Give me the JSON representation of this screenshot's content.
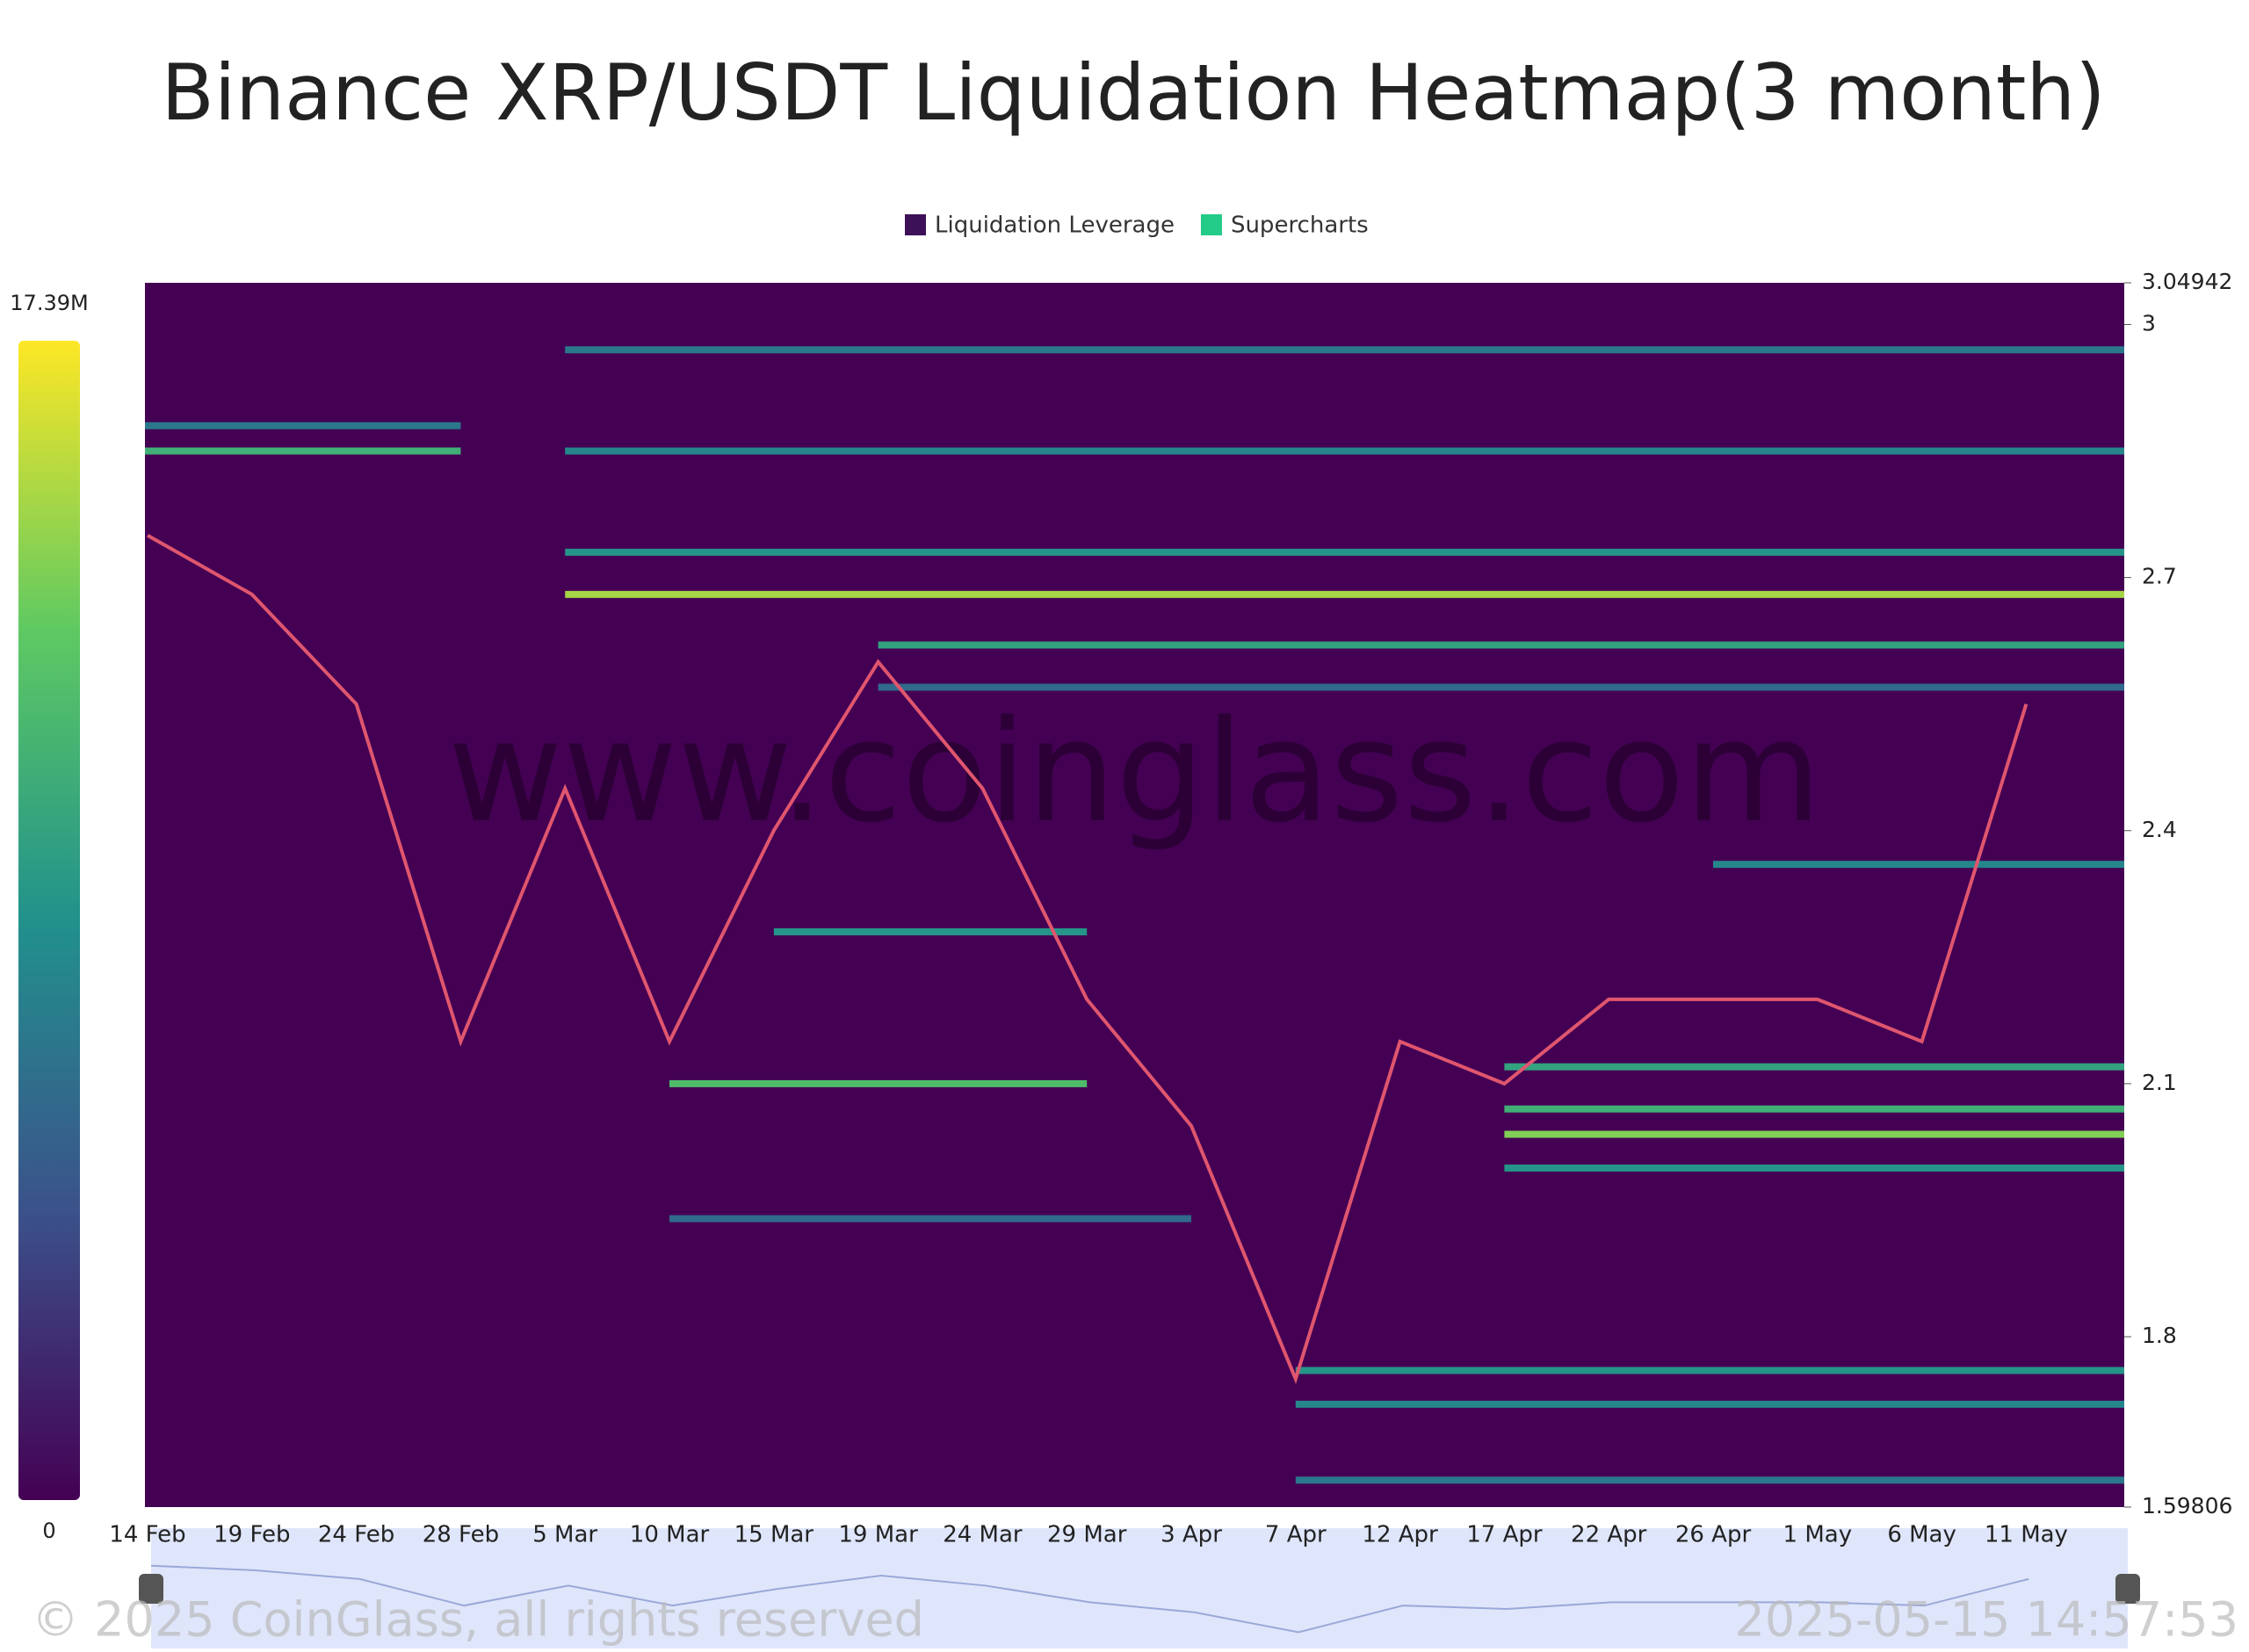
{
  "chart_data": {
    "type": "heatmap",
    "title": "Binance XRP/USDT Liquidation Heatmap(3 month)",
    "legend": [
      {
        "name": "Liquidation Leverage",
        "color": "#3d1158"
      },
      {
        "name": "Supercharts",
        "color": "#22cc88"
      }
    ],
    "colorbar": {
      "min": 0,
      "max": {
        "value": 17.39,
        "label": "17.39M"
      }
    },
    "colormap": [
      "#440154",
      "#3b528b",
      "#21918c",
      "#5ec962",
      "#fde725"
    ],
    "ylim": [
      1.59806,
      3.04942
    ],
    "yticks": [
      1.59806,
      1.8,
      2.1,
      2.4,
      2.7,
      3,
      3.04942
    ],
    "categories": [
      "14 Feb",
      "19 Feb",
      "24 Feb",
      "28 Feb",
      "5 Mar",
      "10 Mar",
      "15 Mar",
      "19 Mar",
      "24 Mar",
      "29 Mar",
      "3 Apr",
      "7 Apr",
      "12 Apr",
      "17 Apr",
      "22 Apr",
      "26 Apr",
      "1 May",
      "6 May",
      "11 May"
    ],
    "price": {
      "color": "#e0566e",
      "values": [
        2.75,
        2.68,
        2.55,
        2.15,
        2.45,
        2.15,
        2.4,
        2.6,
        2.45,
        2.2,
        2.05,
        1.75,
        2.15,
        2.1,
        2.2,
        2.2,
        2.2,
        2.15,
        2.55
      ]
    },
    "levels": [
      {
        "price": 2.85,
        "value": 11,
        "from": "14 Feb",
        "to": "28 Feb"
      },
      {
        "price": 2.88,
        "value": 7,
        "from": "14 Feb",
        "to": "28 Feb"
      },
      {
        "price": 2.97,
        "value": 7,
        "from": "5 Mar",
        "to": "11 May"
      },
      {
        "price": 2.85,
        "value": 8,
        "from": "5 Mar",
        "to": "11 May"
      },
      {
        "price": 2.73,
        "value": 9,
        "from": "5 Mar",
        "to": "11 May"
      },
      {
        "price": 2.68,
        "value": 15,
        "from": "5 Mar",
        "to": "11 May"
      },
      {
        "price": 2.62,
        "value": 10,
        "from": "19 Mar",
        "to": "11 May"
      },
      {
        "price": 2.57,
        "value": 6,
        "from": "19 Mar",
        "to": "11 May"
      },
      {
        "price": 2.36,
        "value": 8,
        "from": "26 Apr",
        "to": "11 May"
      },
      {
        "price": 2.12,
        "value": 10,
        "from": "17 Apr",
        "to": "11 May"
      },
      {
        "price": 2.07,
        "value": 11,
        "from": "17 Apr",
        "to": "11 May"
      },
      {
        "price": 2.04,
        "value": 14,
        "from": "17 Apr",
        "to": "11 May"
      },
      {
        "price": 2.0,
        "value": 9,
        "from": "17 Apr",
        "to": "11 May"
      },
      {
        "price": 2.1,
        "value": 12,
        "from": "10 Mar",
        "to": "29 Mar"
      },
      {
        "price": 1.94,
        "value": 6,
        "from": "10 Mar",
        "to": "3 Apr"
      },
      {
        "price": 1.76,
        "value": 9,
        "from": "7 Apr",
        "to": "11 May"
      },
      {
        "price": 1.72,
        "value": 8,
        "from": "7 Apr",
        "to": "11 May"
      },
      {
        "price": 1.63,
        "value": 7,
        "from": "7 Apr",
        "to": "11 May"
      },
      {
        "price": 2.28,
        "value": 9,
        "from": "15 Mar",
        "to": "29 Mar"
      }
    ],
    "watermark": "www.coinglass.com",
    "copyright": "© 2025 CoinGlass, all rights reserved",
    "timestamp": "2025-05-15 14:57:53"
  }
}
